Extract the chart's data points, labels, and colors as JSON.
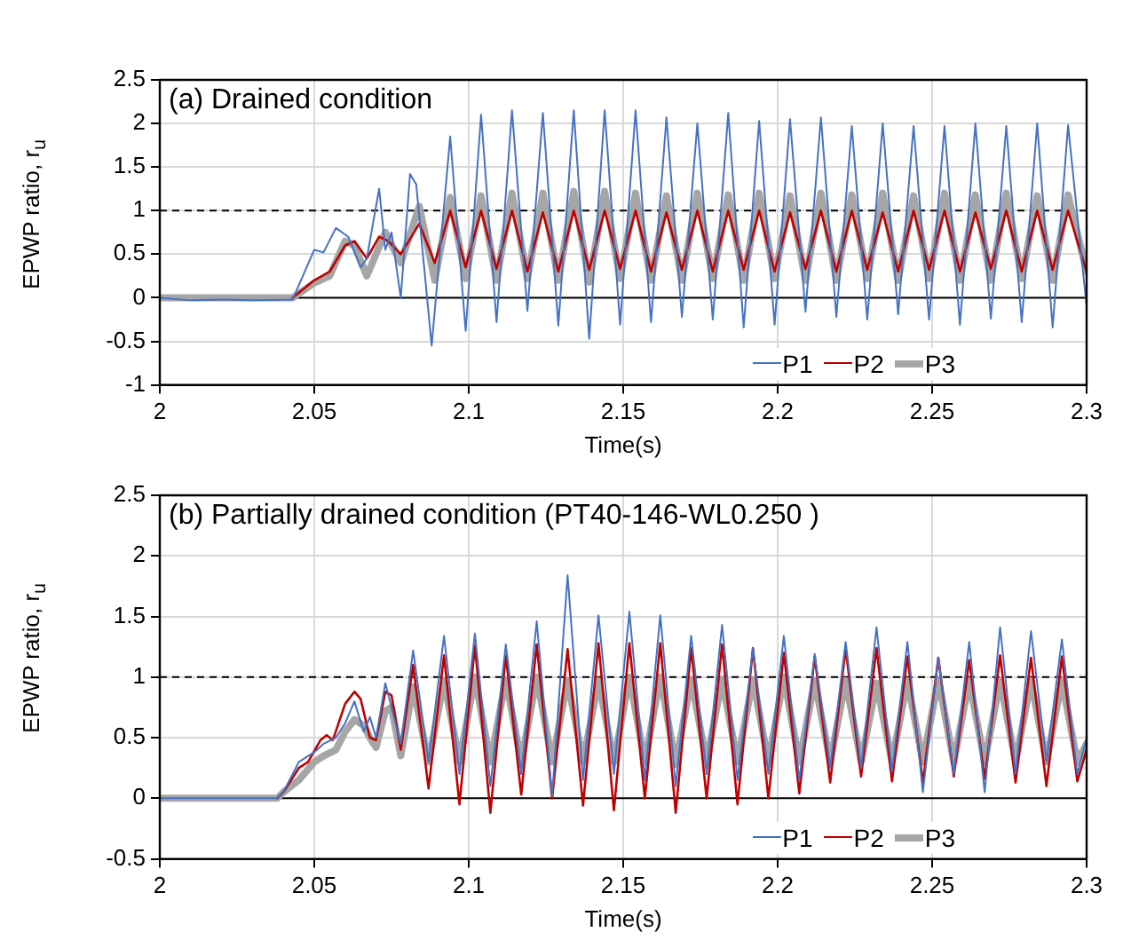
{
  "chart_data": [
    {
      "type": "line",
      "title": "(a) Drained condition",
      "xlabel": "Time(s)",
      "ylabel": "EPWP ratio, r$_{u}$",
      "xlim": [
        2,
        2.3
      ],
      "xticks": [
        2,
        2.05,
        2.1,
        2.15,
        2.2,
        2.25,
        2.3
      ],
      "ylim": [
        -1,
        2.5
      ],
      "yticks": [
        -1,
        -0.5,
        0,
        0.5,
        1,
        1.5,
        2,
        2.5
      ],
      "grid": true,
      "legend": "bottom right",
      "marker": "none",
      "line_style": "solid",
      "ref_lines": [
        {
          "axis": "y",
          "value": 1,
          "color": "#000000",
          "line_style": "dashed"
        },
        {
          "axis": "y",
          "value": 0,
          "color": "#000000",
          "line_style": "solid"
        }
      ],
      "series": [
        {
          "name": "P1",
          "color": "#4472c4",
          "x": [
            2,
            2.01,
            2.02,
            2.03,
            2.043,
            2.05,
            2.053,
            2.057,
            2.061,
            2.065,
            2.067,
            2.071,
            2.073,
            2.075,
            2.078,
            2.081,
            2.083,
            2.088,
            2.094,
            2.099,
            2.104,
            2.109,
            2.114,
            2.119,
            2.124,
            2.129,
            2.134,
            2.139,
            2.144,
            2.149,
            2.154,
            2.159,
            2.164,
            2.169,
            2.174,
            2.179,
            2.184,
            2.189,
            2.194,
            2.199,
            2.204,
            2.209,
            2.214,
            2.219,
            2.224,
            2.229,
            2.234,
            2.239,
            2.244,
            2.249,
            2.254,
            2.259,
            2.264,
            2.269,
            2.274,
            2.279,
            2.284,
            2.289,
            2.294,
            2.3
          ],
          "values": [
            0,
            -0.03,
            -0.02,
            -0.03,
            -0.02,
            0.55,
            0.52,
            0.8,
            0.7,
            0.35,
            0.45,
            1.25,
            0.55,
            0.75,
            0,
            1.42,
            1.3,
            -0.55,
            1.85,
            -0.38,
            2.1,
            -0.28,
            2.15,
            -0.15,
            2.12,
            -0.32,
            2.15,
            -0.47,
            2.15,
            -0.31,
            2.15,
            -0.28,
            2.07,
            -0.22,
            2.0,
            -0.25,
            2.12,
            -0.34,
            2.03,
            -0.31,
            2.05,
            -0.16,
            2.07,
            -0.22,
            1.97,
            -0.25,
            2.0,
            -0.19,
            1.97,
            -0.25,
            1.97,
            -0.31,
            2.0,
            -0.24,
            1.97,
            -0.28,
            2.0,
            -0.34,
            1.98,
            -0.1
          ]
        },
        {
          "name": "P2",
          "color": "#c00000",
          "x": [
            2.043,
            2.05,
            2.055,
            2.06,
            2.063,
            2.067,
            2.071,
            2.074,
            2.078,
            2.084,
            2.089,
            2.094,
            2.099,
            2.104,
            2.109,
            2.114,
            2.119,
            2.124,
            2.129,
            2.134,
            2.139,
            2.144,
            2.149,
            2.154,
            2.159,
            2.164,
            2.169,
            2.174,
            2.179,
            2.184,
            2.189,
            2.194,
            2.199,
            2.204,
            2.209,
            2.214,
            2.219,
            2.224,
            2.229,
            2.234,
            2.239,
            2.244,
            2.249,
            2.254,
            2.259,
            2.264,
            2.269,
            2.274,
            2.279,
            2.284,
            2.289,
            2.294,
            2.3
          ],
          "values": [
            0,
            0.2,
            0.3,
            0.6,
            0.65,
            0.45,
            0.7,
            0.65,
            0.5,
            0.85,
            0.4,
            1.0,
            0.35,
            1.0,
            0.33,
            1.0,
            0.3,
            0.98,
            0.3,
            1.0,
            0.32,
            1.0,
            0.33,
            1.0,
            0.3,
            0.98,
            0.32,
            1.0,
            0.3,
            1.0,
            0.32,
            1.0,
            0.3,
            0.98,
            0.33,
            1.0,
            0.3,
            1.0,
            0.32,
            0.98,
            0.3,
            1.0,
            0.32,
            1.0,
            0.3,
            0.98,
            0.33,
            1.0,
            0.3,
            1.0,
            0.32,
            1.0,
            0.3
          ]
        },
        {
          "name": "P3",
          "color": "#a6a6a6",
          "x": [
            2,
            2.02,
            2.043,
            2.05,
            2.055,
            2.06,
            2.063,
            2.067,
            2.073,
            2.078,
            2.084,
            2.089,
            2.094,
            2.099,
            2.104,
            2.109,
            2.114,
            2.119,
            2.124,
            2.129,
            2.134,
            2.139,
            2.144,
            2.149,
            2.154,
            2.159,
            2.164,
            2.169,
            2.174,
            2.179,
            2.184,
            2.189,
            2.194,
            2.199,
            2.204,
            2.209,
            2.214,
            2.219,
            2.224,
            2.229,
            2.234,
            2.239,
            2.244,
            2.249,
            2.254,
            2.259,
            2.264,
            2.269,
            2.274,
            2.279,
            2.284,
            2.289,
            2.294,
            2.3
          ],
          "values": [
            0,
            0,
            0,
            0.17,
            0.25,
            0.65,
            0.6,
            0.25,
            0.75,
            0.4,
            1.05,
            0.2,
            1.15,
            0.22,
            1.17,
            0.2,
            1.2,
            0.22,
            1.2,
            0.2,
            1.22,
            0.18,
            1.22,
            0.22,
            1.2,
            0.2,
            1.17,
            0.2,
            1.2,
            0.22,
            1.18,
            0.2,
            1.2,
            0.22,
            1.17,
            0.2,
            1.2,
            0.2,
            1.18,
            0.22,
            1.2,
            0.2,
            1.17,
            0.22,
            1.2,
            0.2,
            1.18,
            0.2,
            1.2,
            0.22,
            1.17,
            0.2,
            1.18,
            0.3
          ]
        }
      ]
    },
    {
      "type": "line",
      "title": "(b) Partially drained condition (PT40-146-WL0.250 )",
      "xlabel": "Time(s)",
      "ylabel": "EPWP ratio, r$_{u}$",
      "xlim": [
        2,
        2.3
      ],
      "xticks": [
        2,
        2.05,
        2.1,
        2.15,
        2.2,
        2.25,
        2.3
      ],
      "ylim": [
        -0.5,
        2.5
      ],
      "yticks": [
        -0.5,
        0,
        0.5,
        1,
        1.5,
        2,
        2.5
      ],
      "grid": true,
      "legend": "bottom right",
      "marker": "none",
      "line_style": "solid",
      "ref_lines": [
        {
          "axis": "y",
          "value": 1,
          "color": "#000000",
          "line_style": "dashed"
        },
        {
          "axis": "y",
          "value": 0,
          "color": "#000000",
          "line_style": "solid"
        }
      ],
      "series": [
        {
          "name": "P1",
          "color": "#4472c4",
          "x": [
            2,
            2.02,
            2.038,
            2.04,
            2.045,
            2.05,
            2.053,
            2.057,
            2.06,
            2.063,
            2.066,
            2.068,
            2.07,
            2.073,
            2.075,
            2.078,
            2.082,
            2.087,
            2.092,
            2.097,
            2.102,
            2.107,
            2.112,
            2.117,
            2.122,
            2.127,
            2.132,
            2.137,
            2.142,
            2.147,
            2.152,
            2.157,
            2.162,
            2.167,
            2.172,
            2.177,
            2.182,
            2.187,
            2.192,
            2.197,
            2.202,
            2.207,
            2.212,
            2.217,
            2.222,
            2.227,
            2.232,
            2.237,
            2.242,
            2.247,
            2.252,
            2.257,
            2.262,
            2.267,
            2.272,
            2.277,
            2.282,
            2.287,
            2.292,
            2.297,
            2.3
          ],
          "values": [
            0,
            0,
            0,
            0.05,
            0.3,
            0.38,
            0.45,
            0.5,
            0.62,
            0.8,
            0.55,
            0.67,
            0.5,
            0.95,
            0.75,
            0.45,
            1.22,
            0.3,
            1.34,
            0.2,
            1.36,
            0.1,
            1.27,
            0.2,
            1.46,
            0.02,
            1.84,
            0.15,
            1.51,
            0.2,
            1.54,
            0.15,
            1.51,
            0.1,
            1.34,
            0.2,
            1.43,
            0.15,
            1.24,
            0.2,
            1.34,
            0.15,
            1.19,
            0.25,
            1.29,
            0.25,
            1.41,
            0.22,
            1.29,
            0.05,
            1.16,
            0.2,
            1.29,
            0.05,
            1.41,
            0.2,
            1.38,
            0.3,
            1.31,
            0.2,
            0.5
          ]
        },
        {
          "name": "P2",
          "color": "#c00000",
          "x": [
            2.038,
            2.04,
            2.045,
            2.048,
            2.052,
            2.054,
            2.056,
            2.06,
            2.063,
            2.065,
            2.068,
            2.07,
            2.073,
            2.075,
            2.078,
            2.082,
            2.087,
            2.092,
            2.097,
            2.102,
            2.107,
            2.112,
            2.117,
            2.122,
            2.127,
            2.132,
            2.137,
            2.142,
            2.147,
            2.152,
            2.157,
            2.162,
            2.167,
            2.172,
            2.177,
            2.182,
            2.187,
            2.192,
            2.197,
            2.202,
            2.207,
            2.212,
            2.217,
            2.222,
            2.227,
            2.232,
            2.237,
            2.242,
            2.247,
            2.252,
            2.257,
            2.262,
            2.267,
            2.272,
            2.277,
            2.282,
            2.287,
            2.292,
            2.297,
            2.3
          ],
          "values": [
            0,
            0.05,
            0.25,
            0.3,
            0.48,
            0.52,
            0.48,
            0.78,
            0.88,
            0.82,
            0.5,
            0.48,
            0.88,
            0.85,
            0.4,
            1.1,
            0.08,
            1.18,
            -0.05,
            1.26,
            -0.12,
            1.18,
            0.03,
            1.27,
            0,
            1.23,
            -0.06,
            1.28,
            -0.1,
            1.28,
            0,
            1.28,
            -0.12,
            1.24,
            0,
            1.27,
            -0.05,
            1.24,
            0,
            1.2,
            0.04,
            1.17,
            0.13,
            1.24,
            0.18,
            1.24,
            0.14,
            1.17,
            0.13,
            1.16,
            0.18,
            1.14,
            0.16,
            1.18,
            0.13,
            1.16,
            0.1,
            1.17,
            0.14,
            0.4
          ]
        },
        {
          "name": "P3",
          "color": "#a6a6a6",
          "x": [
            2,
            2.02,
            2.038,
            2.04,
            2.045,
            2.05,
            2.053,
            2.057,
            2.06,
            2.063,
            2.066,
            2.068,
            2.07,
            2.073,
            2.075,
            2.078,
            2.082,
            2.087,
            2.092,
            2.097,
            2.102,
            2.107,
            2.112,
            2.117,
            2.122,
            2.127,
            2.132,
            2.137,
            2.142,
            2.147,
            2.152,
            2.157,
            2.162,
            2.167,
            2.172,
            2.177,
            2.182,
            2.187,
            2.192,
            2.197,
            2.202,
            2.207,
            2.212,
            2.217,
            2.222,
            2.227,
            2.232,
            2.237,
            2.242,
            2.247,
            2.252,
            2.257,
            2.262,
            2.267,
            2.272,
            2.277,
            2.282,
            2.287,
            2.292,
            2.297,
            2.3
          ],
          "values": [
            0,
            0,
            0,
            0.05,
            0.15,
            0.3,
            0.35,
            0.4,
            0.55,
            0.65,
            0.6,
            0.5,
            0.42,
            0.72,
            0.75,
            0.35,
            0.92,
            0.3,
            0.97,
            0.3,
            1.0,
            0.3,
            0.98,
            0.3,
            1.0,
            0.3,
            0.97,
            0.3,
            0.97,
            0.3,
            1.0,
            0.3,
            1.0,
            0.28,
            0.98,
            0.3,
            0.98,
            0.3,
            0.98,
            0.3,
            1.0,
            0.3,
            0.97,
            0.3,
            0.97,
            0.3,
            0.95,
            0.3,
            0.97,
            0.3,
            0.98,
            0.3,
            0.97,
            0.3,
            0.97,
            0.3,
            0.97,
            0.3,
            0.97,
            0.3,
            0.45
          ]
        }
      ]
    }
  ]
}
